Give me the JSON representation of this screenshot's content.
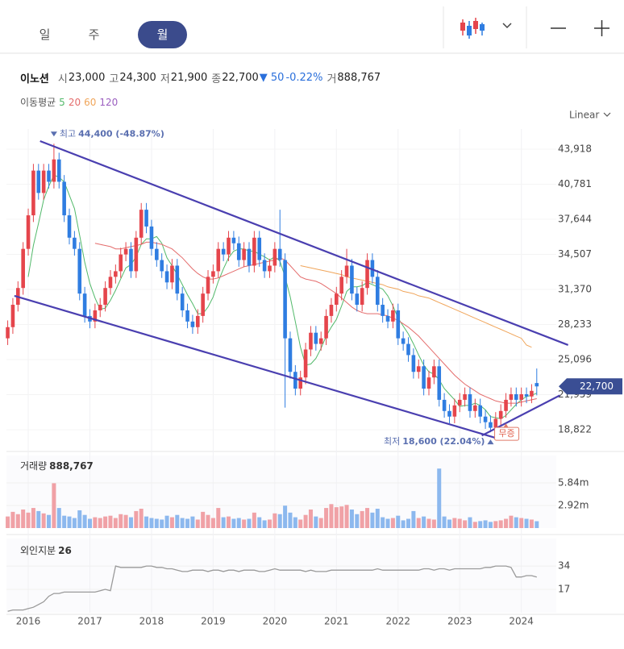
{
  "tabs": [
    "일",
    "주",
    "월"
  ],
  "active_tab": 2,
  "quote": {
    "name": "이노션",
    "fields": [
      {
        "label": "시",
        "value": "23,000"
      },
      {
        "label": "고",
        "value": "24,300"
      },
      {
        "label": "저",
        "value": "21,900"
      },
      {
        "label": "종",
        "value": "22,700"
      }
    ],
    "change": "▼ 50",
    "change_pct": "-0.22%",
    "volume_label": "거",
    "volume_value": "888,767"
  },
  "ma_legend": {
    "label": "이동평균",
    "periods": [
      "5",
      "20",
      "60",
      "120"
    ],
    "colors": [
      "#52b96a",
      "#e46c6c",
      "#f0a55a",
      "#9b5fc0"
    ]
  },
  "scale_label": "Linear",
  "chart_data": {
    "type": "candlestick",
    "up_color": "#e5454c",
    "down_color": "#2f7de1",
    "xlim": [
      -1.5,
      106.8
    ],
    "ylim": [
      17240,
      45720
    ],
    "xticks": [
      {
        "value": 4,
        "label": "2016"
      },
      {
        "value": 16,
        "label": "2017"
      },
      {
        "value": 28,
        "label": "2018"
      },
      {
        "value": 40,
        "label": "2019"
      },
      {
        "value": 52,
        "label": "2020"
      },
      {
        "value": 64,
        "label": "2021"
      },
      {
        "value": 76,
        "label": "2022"
      },
      {
        "value": 88,
        "label": "2023"
      },
      {
        "value": 100,
        "label": "2024"
      }
    ],
    "yticks": [
      {
        "value": 43918,
        "label": "43,918"
      },
      {
        "value": 40781,
        "label": "40,781"
      },
      {
        "value": 37644,
        "label": "37,644"
      },
      {
        "value": 34507,
        "label": "34,507"
      },
      {
        "value": 31370,
        "label": "31,370"
      },
      {
        "value": 28233,
        "label": "28,233"
      },
      {
        "value": 25096,
        "label": "25,096"
      },
      {
        "value": 21959,
        "label": "21,959"
      },
      {
        "value": 18822,
        "label": "18,822"
      }
    ],
    "open": [
      27000,
      28000,
      30000,
      31500,
      35000,
      38000,
      42000,
      40000,
      42000,
      41000,
      43000,
      41000,
      38000,
      36000,
      35000,
      31000,
      29000,
      28500,
      29500,
      30000,
      31500,
      32500,
      33000,
      34500,
      35000,
      33000,
      36000,
      38500,
      37000,
      35000,
      34000,
      33000,
      32000,
      33500,
      31000,
      29500,
      28500,
      28000,
      29000,
      31000,
      32500,
      33000,
      35000,
      34500,
      36000,
      35500,
      34000,
      35000,
      33500,
      36000,
      34000,
      33000,
      33500,
      35000,
      34000,
      27000,
      24000,
      22500,
      23500,
      26000,
      27500,
      26500,
      27000,
      29000,
      30000,
      31000,
      32500,
      33500,
      31000,
      30000,
      31500,
      34000,
      32500,
      30000,
      29000,
      28500,
      29500,
      27000,
      26500,
      25500,
      24000,
      24500,
      22500,
      23500,
      24500,
      21500,
      20500,
      20000,
      21000,
      21500,
      22000,
      20500,
      21000,
      20000,
      19500,
      19000,
      19800,
      20500,
      21500,
      22000,
      21500,
      22000,
      21800,
      23000
    ],
    "high": [
      28600,
      30600,
      32100,
      35600,
      38600,
      42600,
      42600,
      42600,
      42600,
      44400,
      43600,
      41600,
      38600,
      36600,
      35600,
      31600,
      29600,
      30100,
      30600,
      32100,
      33100,
      33600,
      35100,
      35600,
      35600,
      36600,
      39100,
      39100,
      37600,
      35600,
      34600,
      33600,
      34100,
      34100,
      31600,
      30100,
      29100,
      29600,
      31600,
      33100,
      33600,
      35600,
      35600,
      36600,
      36600,
      36100,
      35600,
      35600,
      36600,
      36600,
      34600,
      34100,
      35600,
      38500,
      34600,
      27600,
      24600,
      24100,
      26600,
      28100,
      28100,
      27600,
      29600,
      30600,
      31600,
      33100,
      35000,
      34100,
      31600,
      32100,
      34600,
      34600,
      33100,
      30600,
      29600,
      30100,
      30100,
      27600,
      27100,
      26100,
      25100,
      25100,
      24100,
      25100,
      25100,
      22100,
      21100,
      21600,
      22100,
      22600,
      22600,
      21600,
      21600,
      20600,
      20100,
      20400,
      21100,
      22100,
      22600,
      22600,
      22600,
      22600,
      22900,
      24300
    ],
    "low": [
      26400,
      27400,
      29400,
      30900,
      34400,
      37400,
      39400,
      39400,
      40400,
      40400,
      40400,
      37400,
      35400,
      34400,
      30400,
      28400,
      27900,
      27900,
      28900,
      29400,
      30900,
      31900,
      32400,
      33900,
      32400,
      32400,
      35400,
      36400,
      34400,
      33400,
      32400,
      31400,
      31400,
      30400,
      28900,
      27900,
      27400,
      27400,
      28400,
      30400,
      31900,
      32400,
      33900,
      33900,
      34900,
      33400,
      33400,
      32900,
      32900,
      33400,
      32400,
      32400,
      32900,
      33400,
      20800,
      23400,
      21900,
      21900,
      22900,
      25400,
      25900,
      25900,
      26400,
      28400,
      29400,
      30400,
      31900,
      30400,
      29400,
      29400,
      30900,
      31900,
      29400,
      28400,
      27900,
      27900,
      26400,
      25900,
      24900,
      23400,
      23400,
      21900,
      21900,
      22900,
      20900,
      19900,
      19400,
      19400,
      20400,
      20900,
      19900,
      19900,
      19400,
      18900,
      18600,
      18700,
      19200,
      19900,
      20900,
      20900,
      20900,
      21200,
      21200,
      21900
    ],
    "close": [
      28000,
      30000,
      31500,
      35000,
      38000,
      42000,
      40000,
      42000,
      41000,
      43000,
      41000,
      38000,
      36000,
      35000,
      31000,
      29000,
      28500,
      29500,
      30000,
      31500,
      32500,
      33000,
      34500,
      35000,
      33000,
      36000,
      38500,
      37000,
      35000,
      34000,
      33000,
      32000,
      33500,
      31000,
      29500,
      28500,
      28000,
      29000,
      31000,
      32500,
      33000,
      35000,
      34500,
      36000,
      35500,
      34000,
      35000,
      33500,
      36000,
      34000,
      33000,
      33500,
      35000,
      34000,
      27000,
      24000,
      22500,
      23500,
      26000,
      27500,
      26500,
      27000,
      29000,
      30000,
      31000,
      32500,
      33500,
      31000,
      30000,
      31500,
      34000,
      32500,
      30000,
      29000,
      28500,
      29500,
      27000,
      26500,
      25500,
      24000,
      24500,
      22500,
      23500,
      24500,
      21500,
      20500,
      20000,
      21000,
      21500,
      22000,
      20500,
      21000,
      20000,
      19500,
      19000,
      19800,
      20500,
      21500,
      22000,
      21500,
      22000,
      21800,
      22300,
      22700
    ],
    "ma": [
      {
        "values": [
          null,
          null,
          null,
          null,
          32500,
          35300,
          37300,
          39400,
          40600,
          41600,
          41400,
          41000,
          39800,
          38600,
          36200,
          33800,
          31900,
          30600,
          29600,
          29700,
          30400,
          31300,
          32300,
          33300,
          33600,
          34300,
          35400,
          35900,
          35900,
          36100,
          35500,
          34200,
          33500,
          32700,
          31800,
          30900,
          30100,
          29200,
          29200,
          29800,
          30700,
          32100,
          33200,
          34200,
          34800,
          35000,
          35000,
          34800,
          34800,
          34500,
          34300,
          34000,
          34300,
          33900,
          32500,
          30700,
          28500,
          26200,
          24600,
          24700,
          25200,
          26100,
          27200,
          28000,
          28700,
          29900,
          31200,
          31600,
          31600,
          31700,
          32000,
          31800,
          31600,
          31400,
          30800,
          29900,
          28800,
          28100,
          27400,
          26500,
          25500,
          24600,
          24000,
          23800,
          23300,
          22500,
          22000,
          21500,
          20900,
          21000,
          21000,
          21200,
          21000,
          20600,
          20000,
          19900,
          19800,
          20100,
          20600,
          21100,
          21500,
          21800,
          21900,
          22100
        ]
      },
      {
        "values": [
          null,
          null,
          null,
          null,
          null,
          null,
          null,
          null,
          null,
          null,
          null,
          null,
          null,
          null,
          null,
          null,
          null,
          35500,
          35400,
          35300,
          35200,
          35000,
          35000,
          35100,
          35200,
          35300,
          35400,
          35600,
          35600,
          35500,
          35400,
          35200,
          35000,
          34600,
          34200,
          33700,
          33200,
          32800,
          32500,
          32300,
          32300,
          32400,
          32600,
          32800,
          33000,
          33200,
          33400,
          33500,
          33600,
          33700,
          33800,
          33900,
          34000,
          34200,
          34000,
          33500,
          33000,
          32500,
          32300,
          32200,
          32100,
          31900,
          31600,
          31300,
          31000,
          30600,
          30200,
          29800,
          29500,
          29300,
          29200,
          29200,
          29200,
          29100,
          29000,
          28800,
          28600,
          28300,
          28000,
          27600,
          27200,
          26700,
          26200,
          25700,
          25200,
          24700,
          24200,
          23700,
          23300,
          22900,
          22600,
          22300,
          22000,
          21800,
          21600,
          21400,
          21300,
          21200,
          21200,
          21200,
          21300,
          21400,
          21500,
          21600
        ]
      },
      {
        "values": [
          null,
          null,
          null,
          null,
          null,
          null,
          null,
          null,
          null,
          null,
          null,
          null,
          null,
          null,
          null,
          null,
          null,
          null,
          null,
          null,
          null,
          null,
          null,
          null,
          null,
          null,
          null,
          null,
          null,
          null,
          null,
          null,
          null,
          null,
          null,
          null,
          null,
          null,
          null,
          null,
          null,
          null,
          null,
          null,
          null,
          null,
          null,
          null,
          null,
          null,
          null,
          null,
          null,
          null,
          null,
          null,
          null,
          33500,
          33400,
          33300,
          33200,
          33100,
          33000,
          32900,
          32800,
          32700,
          32500,
          32400,
          32300,
          32200,
          32100,
          32000,
          31900,
          31800,
          31600,
          31500,
          31400,
          31200,
          31100,
          31000,
          30800,
          30700,
          30600,
          30400,
          30200,
          30000,
          29800,
          29600,
          29400,
          29200,
          29000,
          28800,
          28600,
          28400,
          28200,
          28000,
          27800,
          27600,
          27400,
          27200,
          27000,
          26400,
          26200
        ]
      }
    ],
    "high_note": {
      "label": "최고",
      "text": "44,400 (-48.87%)",
      "x": 9
    },
    "low_note": {
      "label": "최저",
      "text": "18,600 (22.04%)",
      "x": 94
    },
    "current": {
      "value": 22700,
      "label": "22,700",
      "color": "#3a4e94"
    },
    "event": {
      "label": "무증",
      "x": 97
    },
    "trendline_color": "#4a3fb0",
    "trendlines": [
      {
        "points": [
          [
            6.3,
            44640
          ],
          [
            109.1,
            26400
          ]
        ]
      },
      {
        "points": [
          [
            1.3,
            30800
          ],
          [
            96,
            17960
          ]
        ]
      },
      {
        "points": [
          [
            92.3,
            18300
          ],
          [
            107.5,
            21900
          ]
        ]
      }
    ]
  },
  "volume": {
    "title": "거래량",
    "last_label": "888,767",
    "up_color": "#f0a1a6",
    "down_color": "#8cb8ee",
    "ylim": [
      0,
      9390000
    ],
    "yticks": [
      {
        "value": 5840000,
        "label": "5.84m"
      },
      {
        "value": 2920000,
        "label": "2.92m"
      }
    ],
    "values": [
      1500000,
      2100000,
      1800000,
      2400000,
      2000000,
      2600000,
      2200000,
      1900000,
      1700000,
      5800000,
      2600000,
      1600000,
      1500000,
      1300000,
      2300000,
      1700000,
      1200000,
      1400000,
      1300000,
      1500000,
      1600000,
      1300000,
      1800000,
      1700000,
      1400000,
      2200000,
      2500000,
      1500000,
      1300000,
      1200000,
      1100000,
      1600000,
      1400000,
      1700000,
      1300000,
      1200000,
      1500000,
      1100000,
      2100000,
      1700000,
      1300000,
      2600000,
      1400000,
      1500000,
      1200000,
      1300000,
      1100000,
      1200000,
      2000000,
      1400000,
      1000000,
      1100000,
      1900000,
      1800000,
      2900000,
      2000000,
      1400000,
      1100000,
      1700000,
      2400000,
      1500000,
      1300000,
      2600000,
      3100000,
      2700000,
      2800000,
      3000000,
      2400000,
      1800000,
      2200000,
      2600000,
      2000000,
      2500000,
      1400000,
      1200000,
      1300000,
      1600000,
      1000000,
      1200000,
      2200000,
      1300000,
      1500000,
      1200000,
      1100000,
      7700000,
      1500000,
      1100000,
      1300000,
      1200000,
      1000000,
      1400000,
      800000,
      900000,
      1000000,
      800000,
      900000,
      1000000,
      1200000,
      1600000,
      1400000,
      1300000,
      1200000,
      1100000,
      888767
    ]
  },
  "foreign": {
    "title": "외인지분",
    "color": "#9a9a9a",
    "ylim": [
      0,
      54
    ],
    "yticks": [
      34,
      17
    ],
    "values": [
      1,
      2,
      2,
      2,
      3,
      4,
      6,
      8,
      12,
      14,
      14,
      15,
      15,
      15,
      15,
      15,
      15,
      15,
      16,
      17,
      16,
      34,
      33,
      33,
      33,
      33,
      33,
      34,
      34,
      33,
      33,
      32,
      32,
      31,
      30,
      30,
      31,
      31,
      31,
      30,
      31,
      31,
      30,
      31,
      31,
      30,
      31,
      31,
      31,
      30,
      30,
      31,
      32,
      31,
      31,
      31,
      31,
      31,
      30,
      31,
      30,
      30,
      30,
      31,
      31,
      31,
      31,
      31,
      31,
      31,
      31,
      31,
      32,
      31,
      31,
      31,
      31,
      31,
      31,
      31,
      31,
      32,
      32,
      31,
      32,
      32,
      31,
      32,
      32,
      32,
      32,
      32,
      32,
      33,
      33,
      34,
      34,
      34,
      33,
      26,
      26,
      27,
      27,
      26
    ]
  }
}
